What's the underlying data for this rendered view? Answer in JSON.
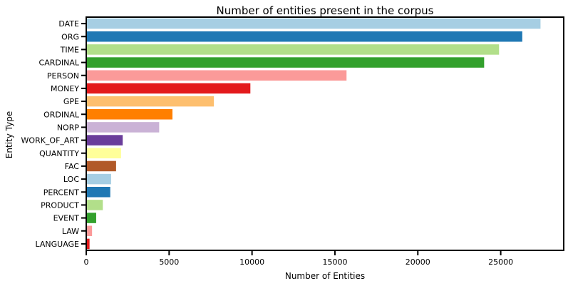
{
  "chart_data": {
    "type": "bar",
    "orientation": "horizontal",
    "title": "Number of entities present in the corpus",
    "xlabel": "Number of Entities",
    "ylabel": "Entity Type",
    "xlim": [
      0,
      28800
    ],
    "xticks": [
      0,
      5000,
      10000,
      15000,
      20000,
      25000
    ],
    "grid": false,
    "categories": [
      "DATE",
      "ORG",
      "TIME",
      "CARDINAL",
      "PERSON",
      "MONEY",
      "GPE",
      "ORDINAL",
      "NORP",
      "WORK_OF_ART",
      "QUANTITY",
      "FAC",
      "LOC",
      "PERCENT",
      "PRODUCT",
      "EVENT",
      "LAW",
      "LANGUAGE"
    ],
    "values": [
      27400,
      26300,
      24900,
      24000,
      15700,
      9900,
      7700,
      5200,
      4400,
      2200,
      2100,
      1800,
      1500,
      1450,
      1000,
      600,
      350,
      200
    ],
    "colors": [
      "#a6cee3",
      "#1f78b4",
      "#b2df8a",
      "#33a02c",
      "#fb9a99",
      "#e31a1c",
      "#fdbf6f",
      "#ff7f00",
      "#cab2d6",
      "#6a3d9a",
      "#ffff99",
      "#b15928",
      "#a6cee3",
      "#1f78b4",
      "#b2df8a",
      "#33a02c",
      "#fb9a99",
      "#e31a1c"
    ]
  }
}
